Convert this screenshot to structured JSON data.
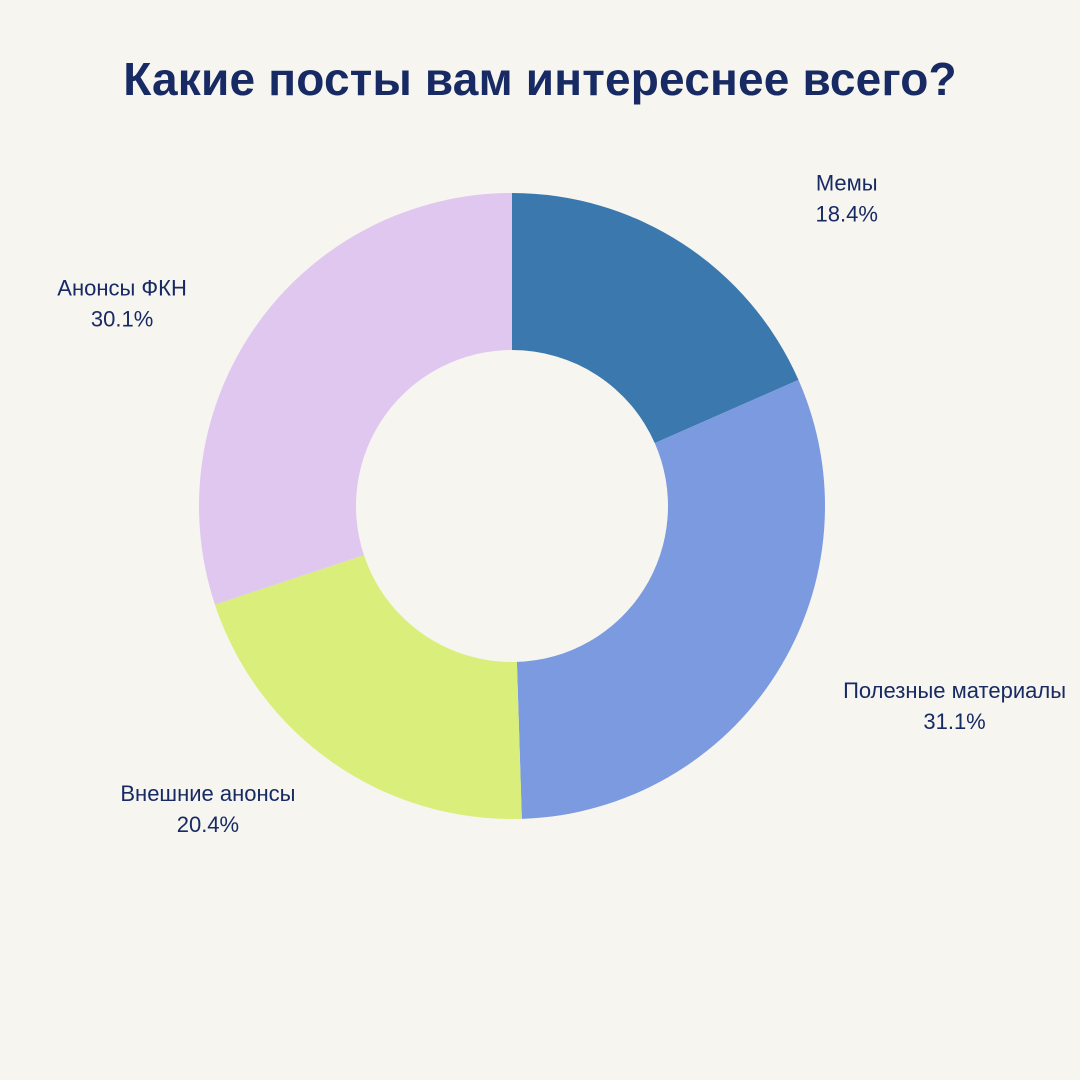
{
  "chart_data": {
    "type": "pie",
    "title": "Какие посты вам интереснее всего?",
    "slices": [
      {
        "label": "Мемы",
        "value": 18.4,
        "value_label": "18.4%",
        "color": "#3B78AE"
      },
      {
        "label": "Полезные материалы",
        "value": 31.1,
        "value_label": "31.1%",
        "color": "#7C9AE0"
      },
      {
        "label": "Внешние анонсы",
        "value": 20.4,
        "value_label": "20.4%",
        "color": "#DAEF7B"
      },
      {
        "label": "Анонсы ФКН",
        "value": 30.1,
        "value_label": "30.1%",
        "color": "#E0C7F0"
      }
    ],
    "donut": true,
    "start_angle": "12 o'clock",
    "direction": "clockwise",
    "legend": "none",
    "label_placement": "outside"
  },
  "colors": {
    "background": "#F6F5EF",
    "text": "#182A63"
  }
}
